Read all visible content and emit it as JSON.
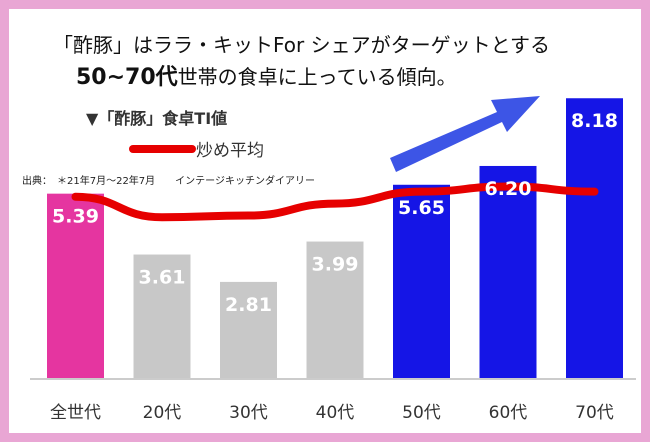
{
  "headline": {
    "line1": "「酢豚」はララ・キットFor シェアがターゲットとする",
    "line2_bold": "50~70代",
    "line2_rest": "世帯の食卓に上っている傾向。"
  },
  "source_note": "出典：　＊21年7月～22年7月　　インテージキッチンダイアリー",
  "colors": {
    "frame": "#e9a6d4",
    "bar_all": "#e535a0",
    "bar_low": "#c8c8c8",
    "bar_high": "#1515e6",
    "line": "#e60000",
    "arrow": "#3d55e6"
  },
  "chart_data": {
    "type": "bar",
    "categories": [
      "全世代",
      "20代",
      "30代",
      "40代",
      "50代",
      "60代",
      "70代"
    ],
    "series": [
      {
        "name": "▼「酢豚」食卓TI値",
        "type": "bar",
        "values": [
          5.39,
          3.61,
          2.81,
          3.99,
          5.65,
          6.2,
          8.18
        ]
      },
      {
        "name": "炒め平均",
        "type": "line",
        "values": [
          5.3,
          4.7,
          4.75,
          5.1,
          5.45,
          5.6,
          5.45
        ]
      }
    ],
    "data_labels": [
      "5.39",
      "3.61",
      "2.81",
      "3.99",
      "5.65",
      "6.20",
      "8.18"
    ],
    "ylim": [
      0,
      8.6
    ],
    "grid": false,
    "legend_position": "top-left"
  }
}
